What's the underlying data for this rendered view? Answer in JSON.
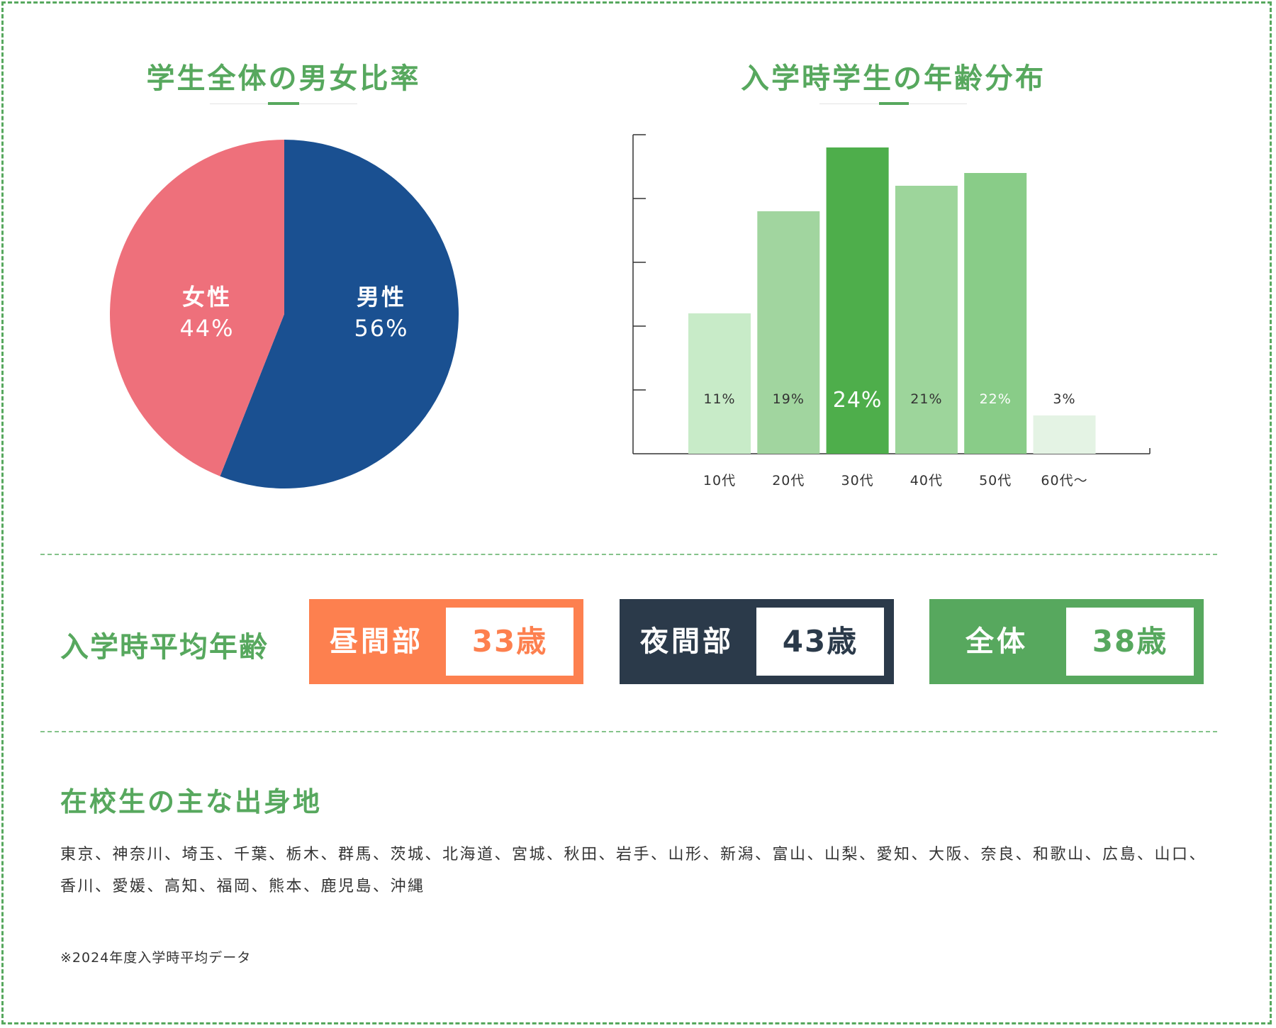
{
  "colors": {
    "accent_green": "#57a85e",
    "female": "#ee707b",
    "male": "#1a5091",
    "day": "#fd804f",
    "night": "#2b3a4a",
    "total": "#57a85e"
  },
  "pie_section": {
    "title": "学生全体の男女比率",
    "female": {
      "label": "女性",
      "value": "44%"
    },
    "male": {
      "label": "男性",
      "value": "56%"
    }
  },
  "bar_section": {
    "title": "入学時学生の年齢分布"
  },
  "chart_data": [
    {
      "type": "pie",
      "title": "学生全体の男女比率",
      "slices": [
        {
          "label": "男性",
          "value": 56,
          "color": "#1a5091"
        },
        {
          "label": "女性",
          "value": 44,
          "color": "#ee707b"
        }
      ]
    },
    {
      "type": "bar",
      "title": "入学時学生の年齢分布",
      "categories": [
        "10代",
        "20代",
        "30代",
        "40代",
        "50代",
        "60代〜"
      ],
      "values": [
        11,
        19,
        24,
        21,
        22,
        3
      ],
      "value_labels": [
        "11%",
        "19%",
        "24%",
        "21%",
        "22%",
        "3%"
      ],
      "colors": [
        "#c8ebc8",
        "#a1d59f",
        "#4eae4b",
        "#9dd59b",
        "#89cc88",
        "#e4f3e4"
      ],
      "label_colors": [
        "#333333",
        "#333333",
        "#ffffff",
        "#333333",
        "#ffffff",
        "#333333"
      ],
      "ylim": [
        0,
        25
      ],
      "y_tick_count": 5
    }
  ],
  "average_age": {
    "label": "入学時平均年齢",
    "boxes": [
      {
        "name": "昼間部",
        "value": "33歳",
        "color": "#fd804f"
      },
      {
        "name": "夜間部",
        "value": "43歳",
        "color": "#2b3a4a"
      },
      {
        "name": "全体",
        "value": "38歳",
        "color": "#57a85e"
      }
    ]
  },
  "origins": {
    "title": "在校生の主な出身地",
    "text": "東京、神奈川、埼玉、千葉、栃木、群馬、茨城、北海道、宮城、秋田、岩手、山形、新潟、富山、山梨、愛知、大阪、奈良、和歌山、広島、山口、香川、愛媛、高知、福岡、熊本、鹿児島、沖縄"
  },
  "note": "※2024年度入学時平均データ"
}
